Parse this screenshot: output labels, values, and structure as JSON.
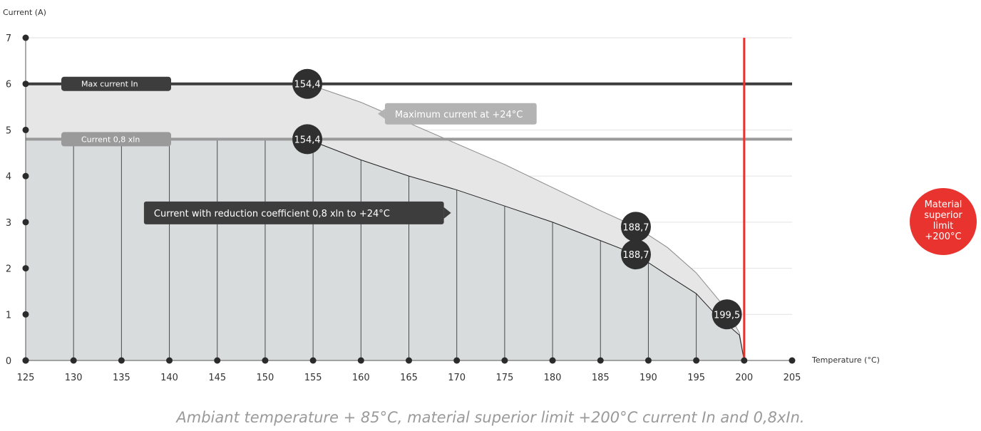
{
  "chart_data": {
    "type": "area",
    "ylabel": "Current (A)",
    "xlabel": "Temperature (°C)",
    "xlim": [
      125,
      205
    ],
    "ylim": [
      0,
      7
    ],
    "x_ticks": [
      125,
      130,
      135,
      140,
      145,
      150,
      155,
      160,
      165,
      170,
      175,
      180,
      185,
      190,
      195,
      200,
      205
    ],
    "y_ticks": [
      0,
      1,
      2,
      3,
      4,
      5,
      6,
      7
    ],
    "grid": true,
    "series": [
      {
        "name": "Max current In",
        "x": [
          125,
          154.4,
          160,
          165,
          170,
          175,
          180,
          185,
          188.7,
          192,
          195,
          198,
          199.5,
          200
        ],
        "y": [
          6,
          6,
          5.6,
          5.15,
          4.7,
          4.25,
          3.75,
          3.25,
          2.9,
          2.45,
          1.9,
          1.15,
          0.6,
          0
        ],
        "color": "#e6e6e6"
      },
      {
        "name": "Current 0,8 xln",
        "x": [
          125,
          154.4,
          160,
          165,
          170,
          175,
          180,
          185,
          188.7,
          192,
          195,
          197,
          199.5,
          200
        ],
        "y": [
          4.8,
          4.8,
          4.35,
          4.0,
          3.7,
          3.35,
          3.0,
          2.6,
          2.3,
          1.85,
          1.45,
          1.0,
          0.55,
          0
        ],
        "color": "#d8dcdd"
      }
    ],
    "reference_lines": [
      {
        "type": "horizontal",
        "y": 6,
        "label": "Max current In",
        "color": "#3d3d3d"
      },
      {
        "type": "horizontal",
        "y": 4.8,
        "label": "Current 0,8 xln",
        "color": "#9a9a9a"
      },
      {
        "type": "vertical",
        "x": 200,
        "color": "#e8332e"
      }
    ],
    "markers": [
      {
        "label": "154,4",
        "x": 154.4,
        "y": 6
      },
      {
        "label": "154,4",
        "x": 154.4,
        "y": 4.8
      },
      {
        "label": "188,7",
        "x": 188.7,
        "y": 2.9
      },
      {
        "label": "188,7",
        "x": 188.7,
        "y": 2.3
      },
      {
        "label": "199,5",
        "x": 198.2,
        "y": 1.0
      }
    ],
    "annotations": [
      {
        "text": "Maximum current at +24°C",
        "color": "#b3b3b3",
        "x": 162.5,
        "y": 5.35
      },
      {
        "text": "Current with reduction coefficient 0,8 xln to +24°C",
        "color": "#3d3d3d",
        "x": 153,
        "y": 3.2
      }
    ],
    "limit_badge": {
      "lines": [
        "Material",
        "superior",
        "limit",
        "+200°C"
      ],
      "color": "#e8332e"
    }
  },
  "caption": "Ambiant temperature + 85°C, material superior limit +200°C current In and 0,8xIn."
}
